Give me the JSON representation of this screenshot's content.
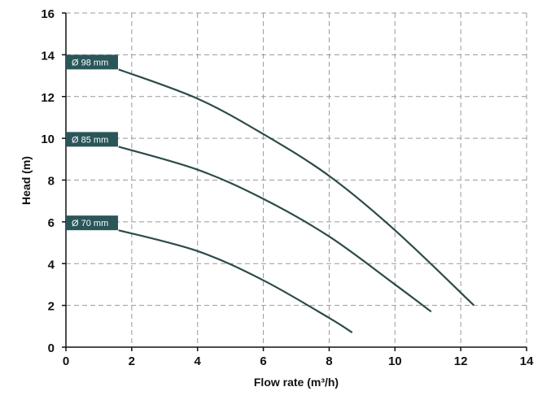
{
  "chart_data": {
    "type": "line",
    "title": "",
    "xlabel": "Flow rate (m³/h)",
    "ylabel": "Head (m)",
    "xlim": [
      0,
      14
    ],
    "ylim": [
      0,
      16
    ],
    "x_ticks": [
      "0",
      "2",
      "4",
      "6",
      "8",
      "10",
      "12",
      "14"
    ],
    "y_ticks": [
      "0",
      "2",
      "4",
      "6",
      "8",
      "10",
      "12",
      "14",
      "16"
    ],
    "grid": true,
    "series": [
      {
        "name": "Ø 98 mm",
        "x": [
          1.6,
          4,
          6,
          8,
          10,
          12.4
        ],
        "y": [
          13.3,
          11.9,
          10.2,
          8.2,
          5.6,
          2.0
        ]
      },
      {
        "name": "Ø 85 mm",
        "x": [
          1.6,
          4,
          6,
          8,
          10,
          11.1
        ],
        "y": [
          9.6,
          8.5,
          7.1,
          5.3,
          3.0,
          1.7
        ]
      },
      {
        "name": "Ø 70 mm",
        "x": [
          1.6,
          4,
          6,
          8,
          8.7
        ],
        "y": [
          5.6,
          4.6,
          3.2,
          1.4,
          0.7
        ]
      }
    ],
    "colors": {
      "line": "#2e4a4a",
      "label_bg": "#2a5659",
      "grid": "#999999"
    }
  }
}
